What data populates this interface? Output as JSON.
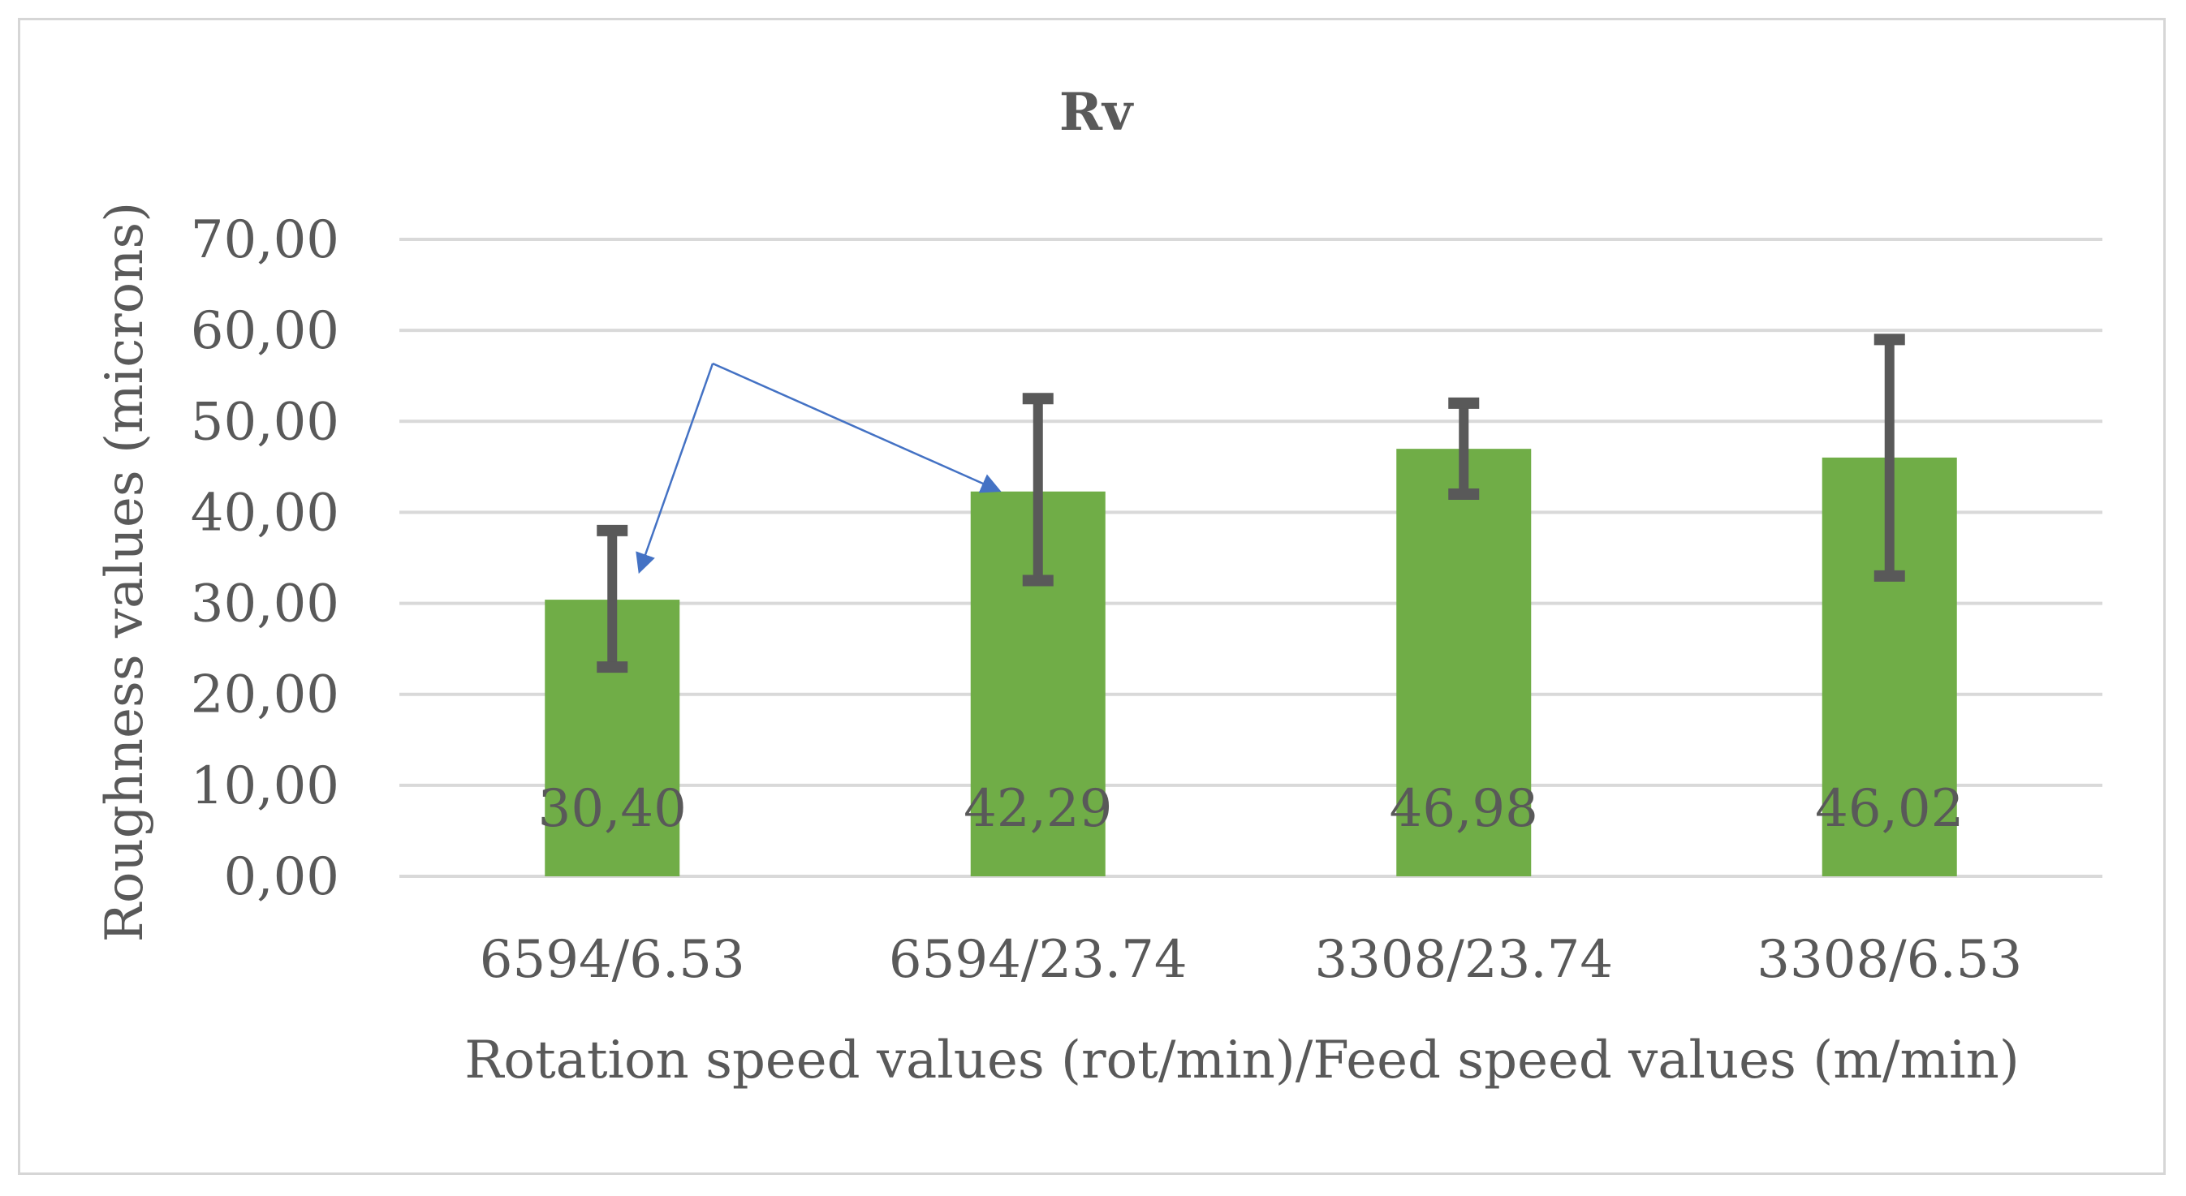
{
  "chart_data": {
    "type": "bar",
    "title": "Rv",
    "xlabel": "Rotation speed values (rot/min)/Feed speed values (m/min)",
    "ylabel": "Roughness values (microns)",
    "categories": [
      "6594/6.53",
      "6594/23.74",
      "3308/23.74",
      "3308/6.53"
    ],
    "values": [
      30.4,
      42.29,
      46.98,
      46.02
    ],
    "data_labels": [
      "30,40",
      "42,29",
      "46,98",
      "46,02"
    ],
    "error_bars": [
      {
        "low": 23.0,
        "high": 38.0
      },
      {
        "low": 32.5,
        "high": 52.5
      },
      {
        "low": 42.0,
        "high": 52.0
      },
      {
        "low": 33.0,
        "high": 59.0
      }
    ],
    "ylim": [
      0,
      70
    ],
    "yticks": [
      0,
      10,
      20,
      30,
      40,
      50,
      60,
      70
    ],
    "ytick_labels": [
      "0,00",
      "10,00",
      "20,00",
      "30,00",
      "40,00",
      "50,00",
      "60,00",
      "70,00"
    ],
    "grid": true,
    "legend": "none",
    "colors": {
      "bar": "#70ad47",
      "error_bar": "#595959",
      "grid": "#d9d9d9",
      "text": "#595959",
      "arrow": "#4472c4"
    },
    "annotations": [
      {
        "type": "arrow",
        "target_category": "6594/6.53"
      },
      {
        "type": "arrow",
        "target_category": "6594/23.74"
      }
    ]
  }
}
